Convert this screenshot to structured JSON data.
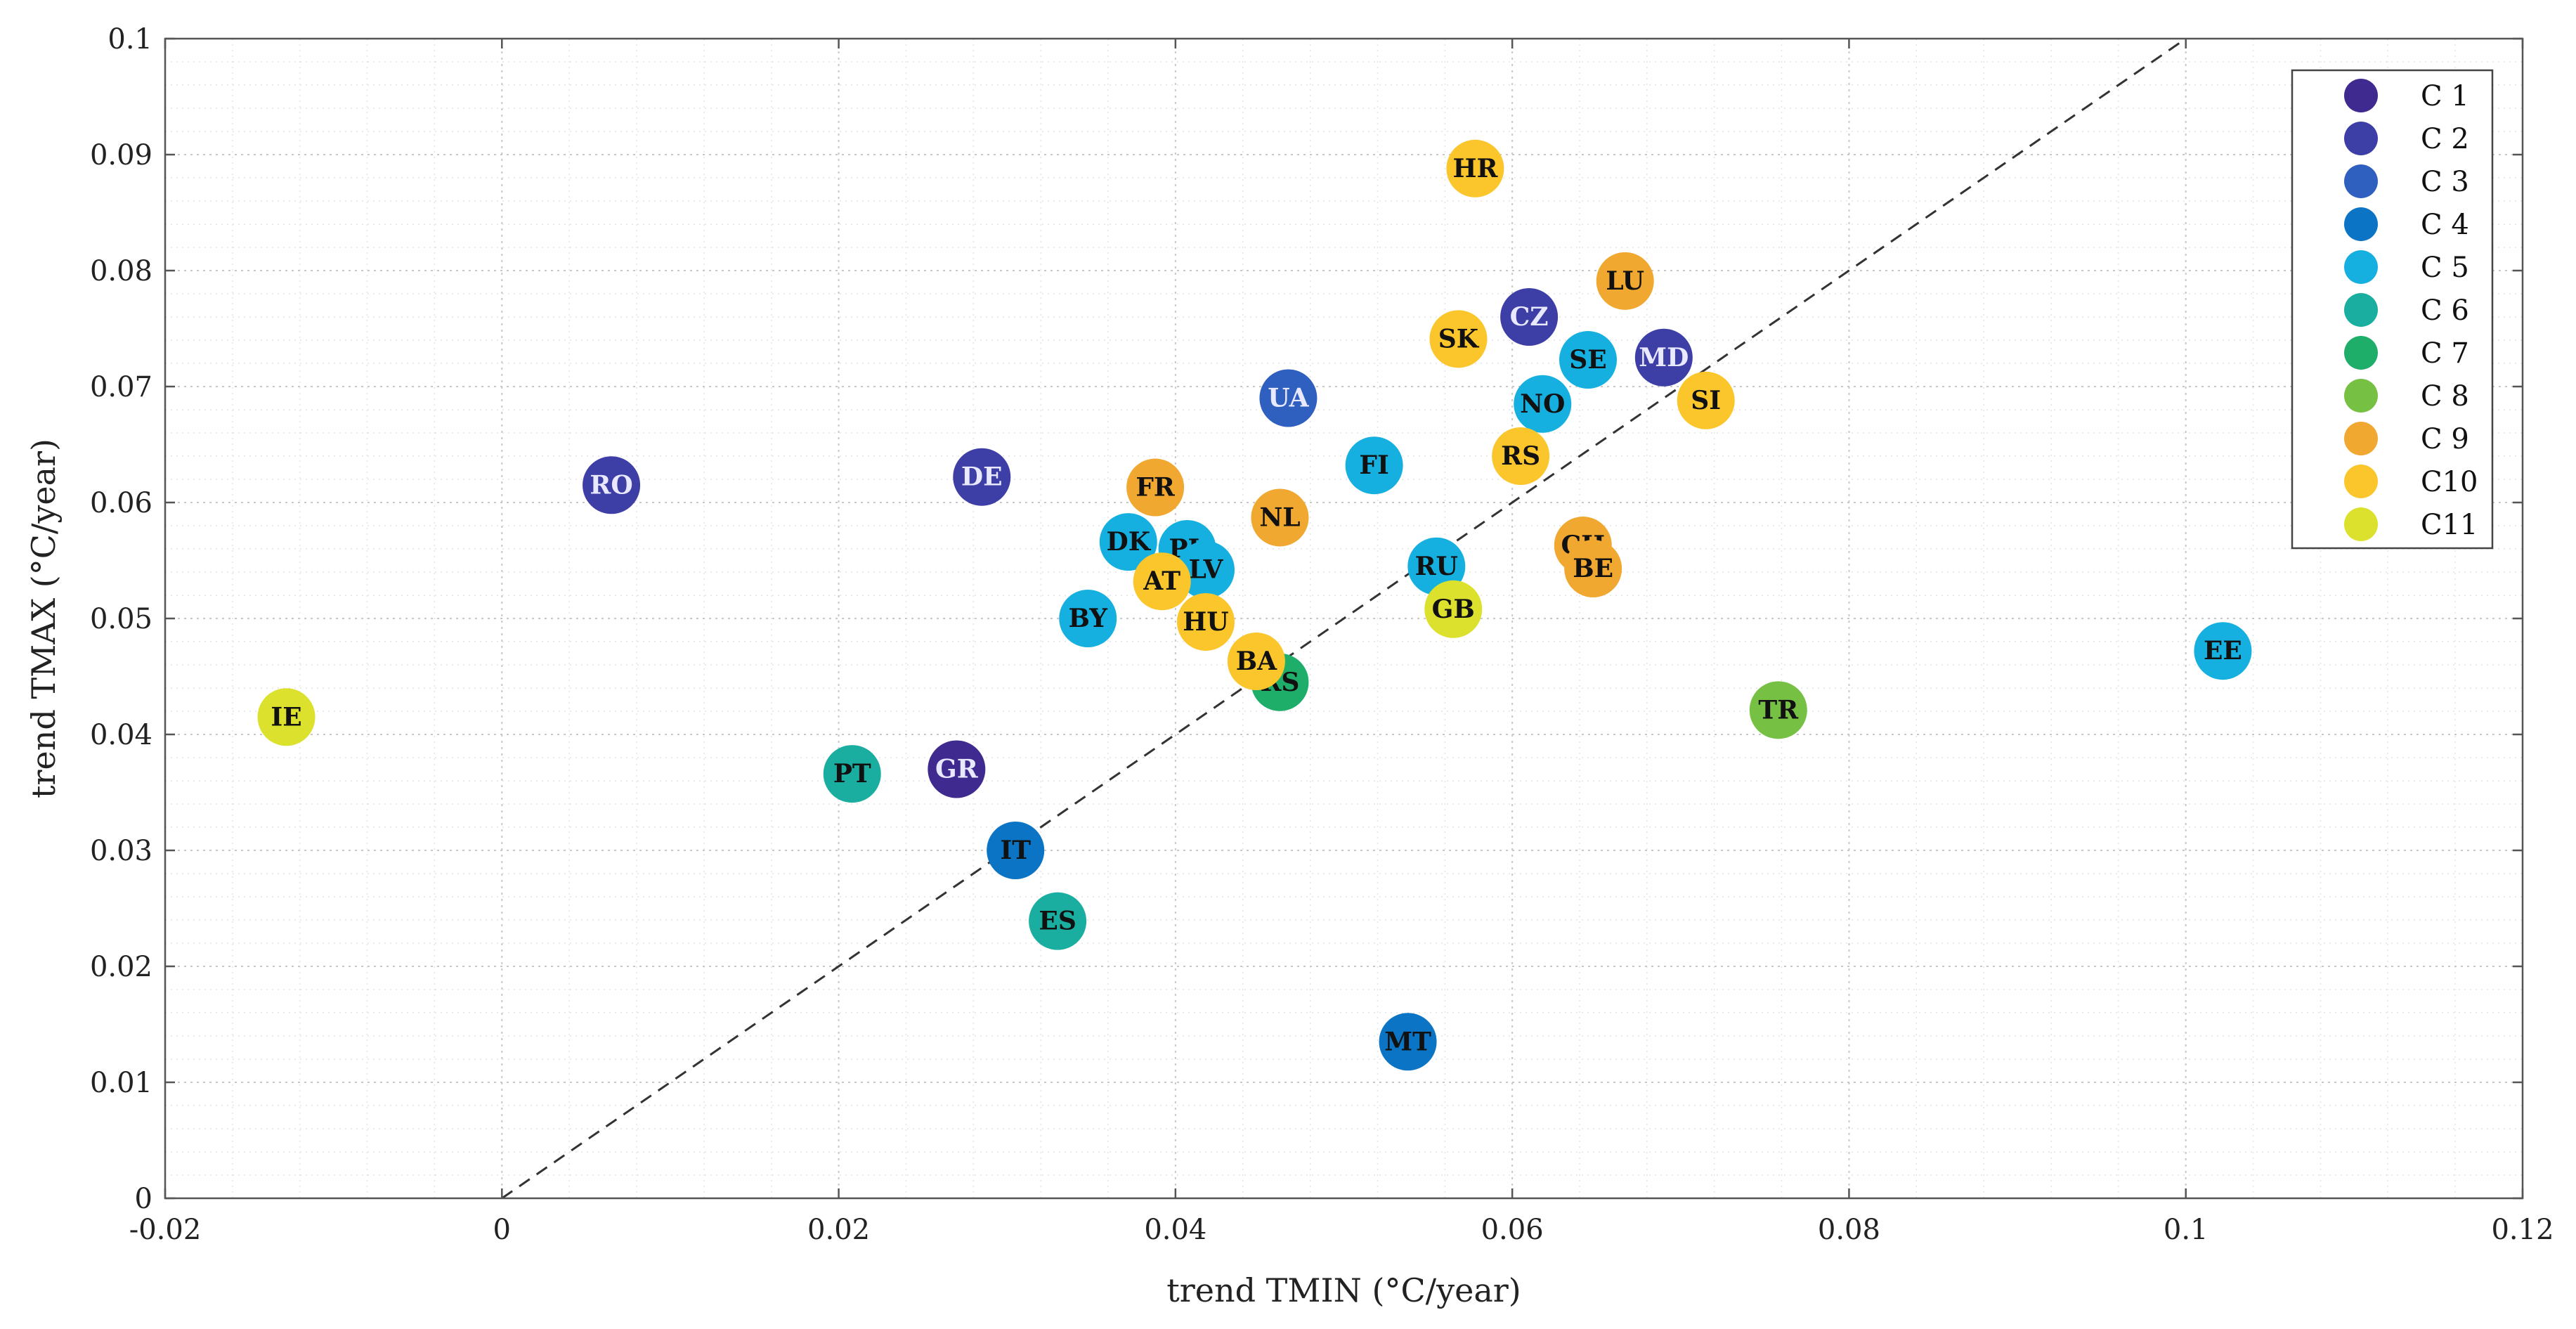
{
  "chart_data": {
    "type": "scatter",
    "title": "",
    "xlabel": "trend TMIN (°C/year)",
    "ylabel": "trend TMAX (°C/year)",
    "xlim": [
      -0.02,
      0.12
    ],
    "ylim": [
      0,
      0.1
    ],
    "xticks": [
      "-0.02",
      "0",
      "0.02",
      "0.04",
      "0.06",
      "0.08",
      "0.1",
      "0.12"
    ],
    "yticks": [
      "0",
      "0.01",
      "0.02",
      "0.03",
      "0.04",
      "0.05",
      "0.06",
      "0.07",
      "0.08",
      "0.09",
      "0.1"
    ],
    "grid": "on (major and minor, dotted)",
    "reference_line": "y = x (dashed)",
    "legend_position": "top-right",
    "clusters": [
      {
        "name": "C 1",
        "color": "#3f2a8f",
        "light_text": true
      },
      {
        "name": "C 2",
        "color": "#3d3ea6",
        "light_text": true
      },
      {
        "name": "C 3",
        "color": "#2f5fbf",
        "light_text": true
      },
      {
        "name": "C 4",
        "color": "#0b74c4",
        "light_text": false
      },
      {
        "name": "C 5",
        "color": "#16b0e0",
        "light_text": false
      },
      {
        "name": "C 6",
        "color": "#1aaea0",
        "light_text": false
      },
      {
        "name": "C 7",
        "color": "#1fae6a",
        "light_text": false
      },
      {
        "name": "C 8",
        "color": "#76c044",
        "light_text": false
      },
      {
        "name": "C 9",
        "color": "#f0a830",
        "light_text": false
      },
      {
        "name": "C10",
        "color": "#fbc62c",
        "light_text": false
      },
      {
        "name": "C11",
        "color": "#dbe12c",
        "light_text": false
      }
    ],
    "points": [
      {
        "label": "RO",
        "x": 0.0065,
        "y": 0.0615,
        "cluster": "C 2"
      },
      {
        "label": "DE",
        "x": 0.0285,
        "y": 0.0622,
        "cluster": "C 2"
      },
      {
        "label": "GR",
        "x": 0.027,
        "y": 0.037,
        "cluster": "C 1"
      },
      {
        "label": "CZ",
        "x": 0.061,
        "y": 0.076,
        "cluster": "C 2"
      },
      {
        "label": "MD",
        "x": 0.069,
        "y": 0.0725,
        "cluster": "C 2"
      },
      {
        "label": "UA",
        "x": 0.0467,
        "y": 0.069,
        "cluster": "C 3"
      },
      {
        "label": "IT",
        "x": 0.0305,
        "y": 0.03,
        "cluster": "C 4"
      },
      {
        "label": "MT",
        "x": 0.0538,
        "y": 0.0135,
        "cluster": "C 4"
      },
      {
        "label": "FI",
        "x": 0.0518,
        "y": 0.0632,
        "cluster": "C 5"
      },
      {
        "label": "SE",
        "x": 0.0645,
        "y": 0.0723,
        "cluster": "C 5"
      },
      {
        "label": "NO",
        "x": 0.0618,
        "y": 0.0685,
        "cluster": "C 5"
      },
      {
        "label": "DK",
        "x": 0.0372,
        "y": 0.0566,
        "cluster": "C 5"
      },
      {
        "label": "PL",
        "x": 0.0407,
        "y": 0.056,
        "cluster": "C 5"
      },
      {
        "label": "LV",
        "x": 0.0418,
        "y": 0.0542,
        "cluster": "C 5"
      },
      {
        "label": "BY",
        "x": 0.0348,
        "y": 0.05,
        "cluster": "C 5"
      },
      {
        "label": "RU",
        "x": 0.0555,
        "y": 0.0545,
        "cluster": "C 5"
      },
      {
        "label": "EE",
        "x": 0.1022,
        "y": 0.0472,
        "cluster": "C 5"
      },
      {
        "label": "PT",
        "x": 0.0208,
        "y": 0.0366,
        "cluster": "C 6"
      },
      {
        "label": "ES",
        "x": 0.033,
        "y": 0.0239,
        "cluster": "C 6"
      },
      {
        "label": "RS",
        "x": 0.0462,
        "y": 0.0445,
        "cluster": "C 7"
      },
      {
        "label": "TR",
        "x": 0.0758,
        "y": 0.0421,
        "cluster": "C 8"
      },
      {
        "label": "LU",
        "x": 0.0667,
        "y": 0.0791,
        "cluster": "C 9"
      },
      {
        "label": "FR",
        "x": 0.0388,
        "y": 0.0613,
        "cluster": "C 9"
      },
      {
        "label": "NL",
        "x": 0.0462,
        "y": 0.0587,
        "cluster": "C 9"
      },
      {
        "label": "CH",
        "x": 0.0642,
        "y": 0.0563,
        "cluster": "C 9"
      },
      {
        "label": "BE",
        "x": 0.0648,
        "y": 0.0543,
        "cluster": "C 9"
      },
      {
        "label": "HR",
        "x": 0.0578,
        "y": 0.0888,
        "cluster": "C10"
      },
      {
        "label": "SK",
        "x": 0.0568,
        "y": 0.0741,
        "cluster": "C10"
      },
      {
        "label": "SI",
        "x": 0.0715,
        "y": 0.0688,
        "cluster": "C10"
      },
      {
        "label": "RS",
        "x": 0.0605,
        "y": 0.064,
        "cluster": "C10"
      },
      {
        "label": "AT",
        "x": 0.0392,
        "y": 0.0532,
        "cluster": "C10"
      },
      {
        "label": "HU",
        "x": 0.0418,
        "y": 0.0497,
        "cluster": "C10"
      },
      {
        "label": "BA",
        "x": 0.0448,
        "y": 0.0463,
        "cluster": "C10"
      },
      {
        "label": "IE",
        "x": -0.0128,
        "y": 0.0415,
        "cluster": "C11"
      },
      {
        "label": "GB",
        "x": 0.0565,
        "y": 0.0508,
        "cluster": "C11"
      }
    ]
  }
}
